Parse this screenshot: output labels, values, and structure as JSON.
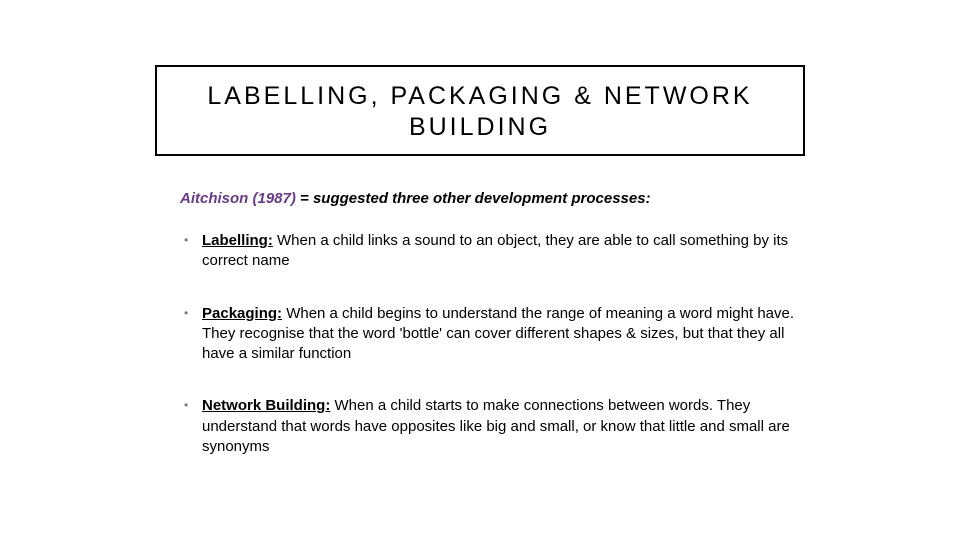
{
  "slide": {
    "title": "LABELLING, PACKAGING & NETWORK BUILDING",
    "intro_author": "Aitchison (1987)",
    "intro_rest": " = suggested three other development processes:",
    "bullets": [
      {
        "term": "Labelling:",
        "text": " When a child links a sound to an object, they are able to call something by its correct name"
      },
      {
        "term": "Packaging:",
        "text": " When a child begins to understand the range of meaning a word might have. They recognise that the word 'bottle' can cover different shapes & sizes, but that they all have a similar function"
      },
      {
        "term": "Network Building:",
        "text": " When a child starts to make connections between words. They understand that words have opposites like big and small, or know that little and small are synonyms"
      }
    ],
    "colors": {
      "author_color": "#6a3a86",
      "bullet_marker_color": "#7a7a7a",
      "text_color": "#000000",
      "border_color": "#000000",
      "background": "#ffffff"
    }
  }
}
